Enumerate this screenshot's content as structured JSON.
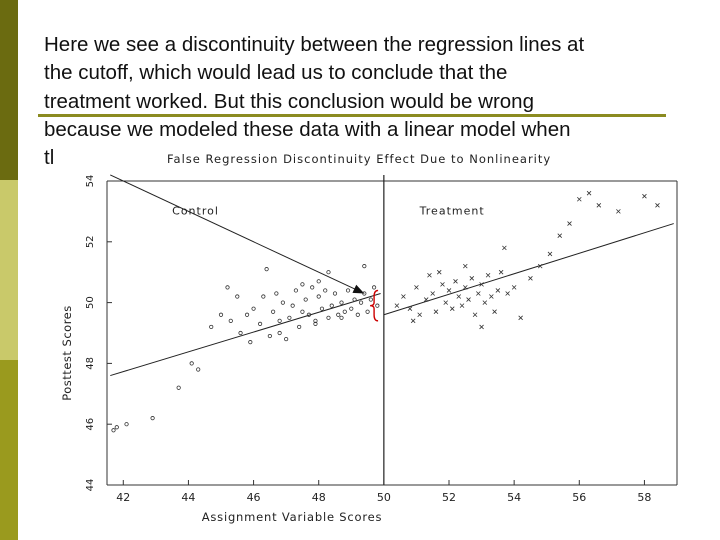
{
  "slide": {
    "text_lines": [
      "Here we see a discontinuity between the regression lines at",
      "the cutoff, which would lead us to conclude that the",
      "treatment worked. But this conclusion would be wrong",
      "because we modeled these data with a linear model when",
      "tl"
    ]
  },
  "colors": {
    "sidebar_dark": "#6b6b10",
    "sidebar_light": "#c9c96a",
    "sidebar_mid": "#9a9a1e",
    "divider": "#8b8b20",
    "brace": "#cc0000"
  },
  "chart_data": {
    "type": "scatter",
    "title": "False Regression Discontinuity Effect Due to Nonlinearity",
    "xlabel": "Assignment Variable Scores",
    "ylabel": "Posttest Scores",
    "xlim": [
      41.5,
      59
    ],
    "ylim": [
      44,
      54
    ],
    "xticks": [
      42,
      44,
      46,
      48,
      50,
      52,
      54,
      56,
      58
    ],
    "xtick_labels": [
      "42",
      "44",
      "46",
      "48",
      "50",
      "52",
      "54",
      "56",
      "58"
    ],
    "yticks": [
      44,
      46,
      48,
      50,
      52,
      54
    ],
    "ytick_labels": [
      "44",
      "46",
      "48",
      "50",
      "52",
      "54"
    ],
    "cutoff": 50,
    "region_labels": [
      "Control",
      "Treatment"
    ],
    "regression_lines": [
      {
        "name": "Control",
        "x": [
          41.6,
          49.9
        ],
        "y": [
          47.6,
          50.3
        ]
      },
      {
        "name": "Treatment",
        "x": [
          50.0,
          58.9
        ],
        "y": [
          49.6,
          52.6
        ]
      }
    ],
    "annotation_arrow": {
      "from": [
        41.6,
        54.2
      ],
      "to": [
        49.4,
        50.3
      ]
    },
    "series": [
      {
        "name": "Control",
        "marker": "circle",
        "x": [
          41.7,
          41.8,
          42.1,
          42.9,
          43.7,
          44.3,
          44.1,
          44.7,
          45.0,
          45.3,
          45.5,
          45.6,
          45.8,
          46.0,
          46.2,
          46.3,
          46.5,
          46.6,
          46.7,
          46.8,
          46.9,
          47.0,
          47.1,
          47.2,
          47.3,
          47.4,
          47.5,
          47.6,
          47.7,
          47.8,
          47.9,
          48.0,
          48.0,
          48.1,
          48.2,
          48.3,
          48.4,
          48.5,
          48.6,
          48.7,
          48.8,
          48.9,
          49.0,
          49.1,
          49.2,
          49.3,
          49.4,
          49.5,
          49.6,
          49.7,
          49.8,
          46.4,
          45.2,
          47.5,
          48.3,
          49.4,
          46.8,
          47.9,
          48.7,
          45.9
        ],
        "y": [
          45.8,
          45.9,
          46.0,
          46.2,
          47.2,
          47.8,
          48.0,
          49.2,
          49.6,
          49.4,
          50.2,
          49.0,
          49.6,
          49.8,
          49.3,
          50.2,
          48.9,
          49.7,
          50.3,
          49.4,
          50.0,
          48.8,
          49.5,
          49.9,
          50.4,
          49.2,
          49.7,
          50.1,
          49.6,
          50.5,
          49.4,
          50.2,
          50.7,
          49.8,
          50.4,
          49.5,
          49.9,
          50.3,
          49.6,
          50.0,
          49.7,
          50.4,
          49.8,
          50.1,
          49.6,
          50.0,
          50.3,
          49.7,
          50.1,
          50.5,
          49.9,
          51.1,
          50.5,
          50.6,
          51.0,
          51.2,
          49.0,
          49.3,
          49.5,
          48.7
        ]
      },
      {
        "name": "Treatment",
        "marker": "x",
        "x": [
          50.4,
          50.6,
          50.8,
          51.0,
          51.1,
          51.3,
          51.5,
          51.6,
          51.8,
          51.9,
          52.0,
          52.1,
          52.2,
          52.3,
          52.4,
          52.5,
          52.6,
          52.7,
          52.8,
          52.9,
          53.0,
          53.1,
          53.2,
          53.3,
          53.4,
          53.5,
          53.6,
          53.8,
          54.0,
          54.2,
          54.5,
          54.8,
          55.1,
          55.4,
          55.7,
          56.0,
          56.3,
          56.6,
          57.2,
          58.0,
          58.4,
          51.4,
          52.5,
          53.7,
          50.9,
          53.0,
          51.7
        ],
        "y": [
          49.9,
          50.2,
          49.8,
          50.5,
          49.6,
          50.1,
          50.3,
          49.7,
          50.6,
          50.0,
          50.4,
          49.8,
          50.7,
          50.2,
          49.9,
          50.5,
          50.1,
          50.8,
          49.6,
          50.3,
          50.6,
          50.0,
          50.9,
          50.2,
          49.7,
          50.4,
          51.0,
          50.3,
          50.5,
          49.5,
          50.8,
          51.2,
          51.6,
          52.2,
          52.6,
          53.4,
          53.6,
          53.2,
          53.0,
          53.5,
          53.2,
          50.9,
          51.2,
          51.8,
          49.4,
          49.2,
          51.0
        ]
      }
    ]
  }
}
